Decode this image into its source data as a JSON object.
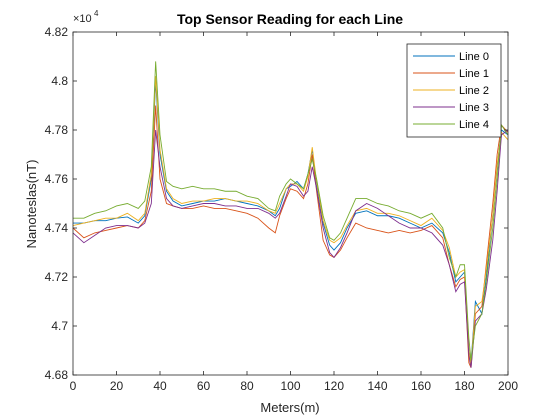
{
  "chart_data": {
    "type": "line",
    "title": "Top Sensor Reading for each Line",
    "xlabel": "Meters(m)",
    "ylabel": "Nanoteslas(nT)",
    "exponent_label": "×10",
    "exponent_power": "4",
    "xlim": [
      0,
      200
    ],
    "ylim": [
      46800,
      48200
    ],
    "xticks": [
      0,
      20,
      40,
      60,
      80,
      100,
      120,
      140,
      160,
      180,
      200
    ],
    "yticks": [
      46800,
      47000,
      47200,
      47400,
      47600,
      47800,
      48000,
      48200
    ],
    "ytick_labels": [
      "4.68",
      "4.7",
      "4.72",
      "4.74",
      "4.76",
      "4.78",
      "4.8",
      "4.82"
    ],
    "legend_position": "top-right",
    "grid": false,
    "x": [
      0,
      5,
      10,
      15,
      20,
      25,
      30,
      33,
      36,
      38,
      40,
      43,
      46,
      50,
      55,
      60,
      65,
      70,
      75,
      80,
      85,
      90,
      93,
      95,
      98,
      100,
      103,
      106,
      108,
      110,
      112,
      115,
      118,
      120,
      123,
      126,
      130,
      135,
      140,
      145,
      150,
      155,
      160,
      165,
      170,
      173,
      176,
      178,
      180,
      182,
      183,
      185,
      188,
      190,
      193,
      195,
      197,
      200
    ],
    "series": [
      {
        "name": "Line 0",
        "color": "#0072bd",
        "values": [
          47420,
          47420,
          47430,
          47430,
          47440,
          47445,
          47420,
          47450,
          47600,
          48000,
          47700,
          47550,
          47510,
          47490,
          47500,
          47510,
          47510,
          47520,
          47510,
          47500,
          47490,
          47470,
          47450,
          47480,
          47560,
          47570,
          47590,
          47560,
          47620,
          47720,
          47580,
          47420,
          47330,
          47310,
          47340,
          47400,
          47460,
          47470,
          47450,
          47450,
          47440,
          47420,
          47400,
          47420,
          47380,
          47300,
          47180,
          47200,
          47220,
          46900,
          46850,
          47100,
          47050,
          47200,
          47450,
          47650,
          47800,
          47780
        ]
      },
      {
        "name": "Line 1",
        "color": "#d95319",
        "values": [
          47400,
          47360,
          47380,
          47390,
          47400,
          47410,
          47400,
          47430,
          47550,
          47900,
          47600,
          47500,
          47490,
          47480,
          47480,
          47490,
          47480,
          47480,
          47470,
          47460,
          47440,
          47400,
          47380,
          47450,
          47520,
          47560,
          47550,
          47520,
          47580,
          47700,
          47550,
          47350,
          47290,
          47280,
          47310,
          47360,
          47420,
          47400,
          47390,
          47380,
          47390,
          47380,
          47390,
          47410,
          47360,
          47250,
          47160,
          47190,
          47200,
          46850,
          46830,
          47050,
          47080,
          47250,
          47500,
          47700,
          47820,
          47790
        ]
      },
      {
        "name": "Line 2",
        "color": "#edb120",
        "values": [
          47410,
          47420,
          47430,
          47440,
          47440,
          47460,
          47430,
          47460,
          47620,
          48020,
          47720,
          47560,
          47520,
          47500,
          47510,
          47510,
          47520,
          47520,
          47510,
          47510,
          47500,
          47470,
          47460,
          47500,
          47560,
          47580,
          47580,
          47550,
          47610,
          47730,
          47590,
          47430,
          47350,
          47340,
          47360,
          47410,
          47470,
          47480,
          47460,
          47460,
          47450,
          47430,
          47410,
          47440,
          47390,
          47320,
          47200,
          47220,
          47230,
          46900,
          46840,
          47080,
          47100,
          47230,
          47450,
          47660,
          47790,
          47760
        ]
      },
      {
        "name": "Line 3",
        "color": "#7e2f8e",
        "values": [
          47380,
          47340,
          47370,
          47400,
          47410,
          47410,
          47400,
          47420,
          47500,
          47800,
          47650,
          47520,
          47490,
          47480,
          47490,
          47500,
          47500,
          47490,
          47490,
          47480,
          47480,
          47460,
          47440,
          47460,
          47530,
          47580,
          47570,
          47530,
          47550,
          47650,
          47560,
          47400,
          47300,
          47280,
          47320,
          47380,
          47470,
          47500,
          47480,
          47450,
          47420,
          47400,
          47400,
          47380,
          47330,
          47250,
          47140,
          47170,
          47180,
          46880,
          46830,
          47020,
          47050,
          47150,
          47350,
          47550,
          47780,
          47800
        ]
      },
      {
        "name": "Line 4",
        "color": "#77ac30",
        "values": [
          47440,
          47440,
          47460,
          47470,
          47490,
          47500,
          47480,
          47510,
          47650,
          48080,
          47780,
          47590,
          47570,
          47560,
          47570,
          47560,
          47560,
          47550,
          47550,
          47530,
          47520,
          47480,
          47470,
          47530,
          47580,
          47600,
          47580,
          47560,
          47620,
          47680,
          47600,
          47450,
          47360,
          47350,
          47380,
          47440,
          47520,
          47520,
          47500,
          47490,
          47470,
          47460,
          47440,
          47460,
          47400,
          47280,
          47200,
          47250,
          47250,
          46950,
          46860,
          47000,
          47050,
          47180,
          47400,
          47600,
          47820,
          47780
        ]
      }
    ]
  }
}
